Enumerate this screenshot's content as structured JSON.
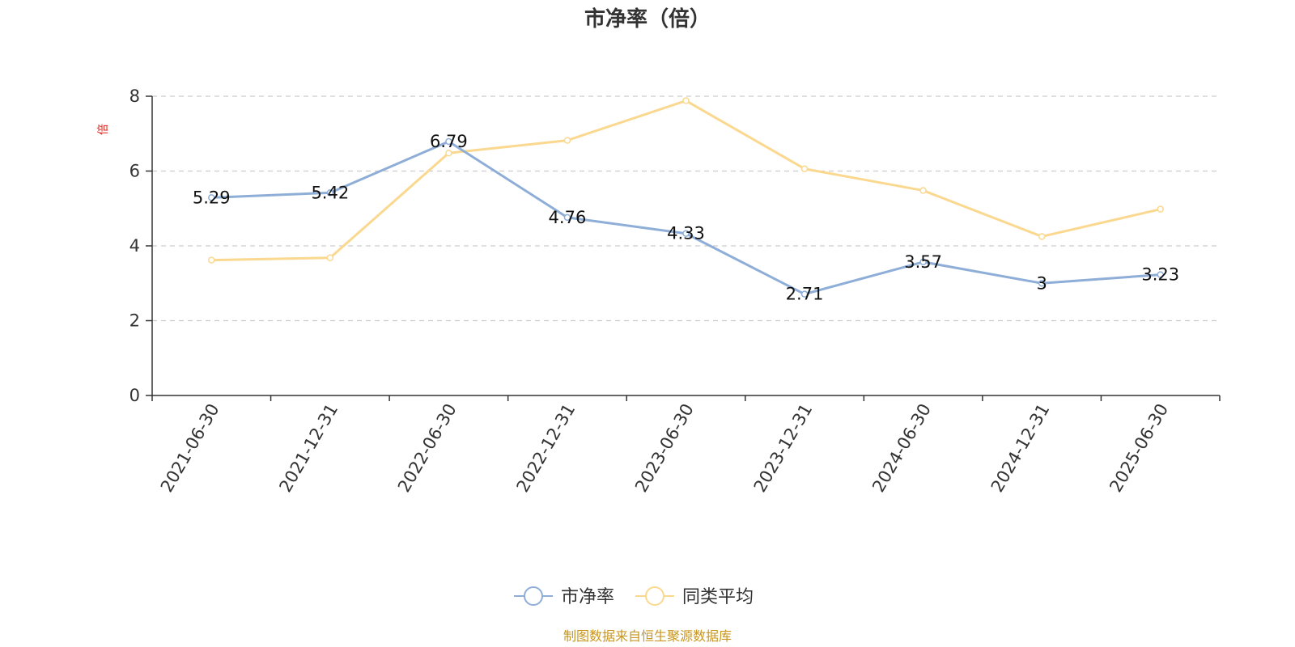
{
  "chart_data": {
    "type": "line",
    "title": "市净率（倍）",
    "ylabel": "倍",
    "xlabel": "",
    "categories": [
      "2021-06-30",
      "2021-12-31",
      "2022-06-30",
      "2022-12-31",
      "2023-06-30",
      "2023-12-31",
      "2024-06-30",
      "2024-12-31",
      "2025-06-30"
    ],
    "ylim": [
      0,
      8
    ],
    "yticks": [
      0,
      2,
      4,
      6,
      8
    ],
    "grid": true,
    "legend_position": "bottom-center",
    "series": [
      {
        "name": "市净率",
        "color": "#8eaed8",
        "values": [
          5.29,
          5.42,
          6.79,
          4.76,
          4.33,
          2.71,
          3.57,
          3,
          3.23
        ],
        "labels": [
          "5.29",
          "5.42",
          "6.79",
          "4.76",
          "4.33",
          "2.71",
          "3.57",
          "3",
          "3.23"
        ]
      },
      {
        "name": "同类平均",
        "color": "#fad88f",
        "values": [
          3.62,
          3.68,
          6.48,
          6.82,
          7.88,
          6.06,
          5.48,
          4.25,
          4.98
        ]
      }
    ],
    "source": "制图数据来自恒生聚源数据库"
  }
}
